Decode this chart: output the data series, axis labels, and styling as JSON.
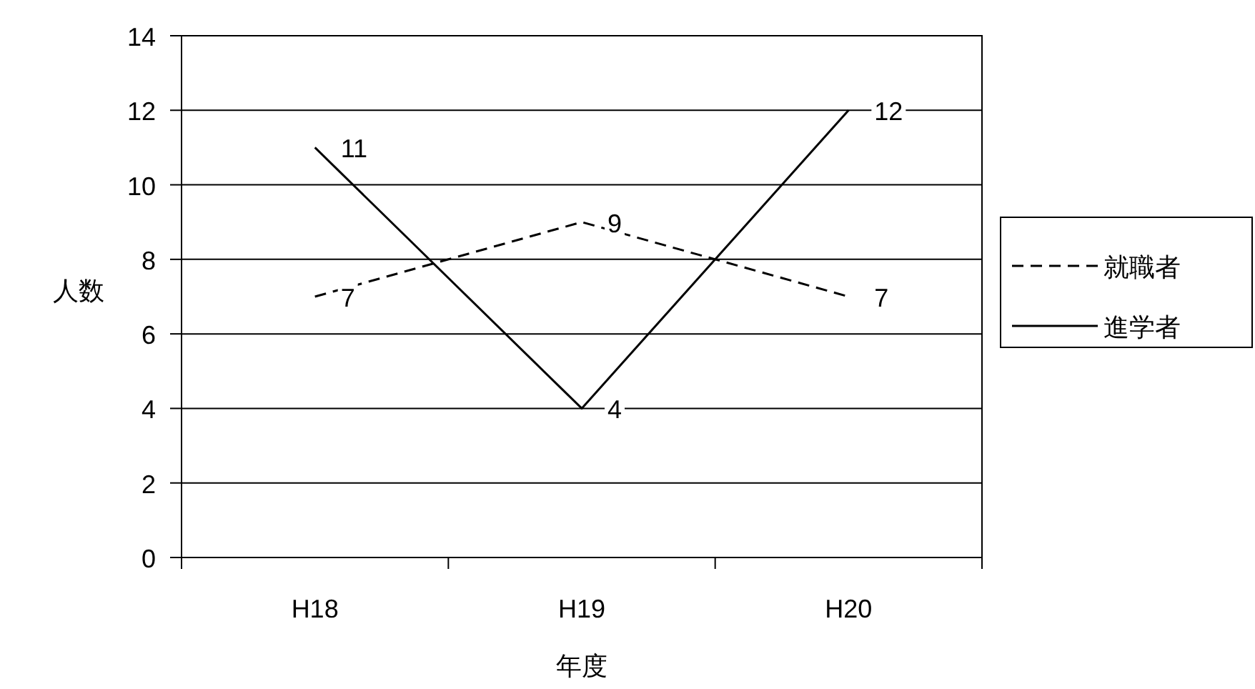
{
  "chart_data": {
    "type": "line",
    "xlabel": "年度",
    "ylabel": "人数",
    "categories": [
      "H18",
      "H19",
      "H20"
    ],
    "series": [
      {
        "name": "就職者",
        "color": "#000000",
        "values": [
          7,
          9,
          7
        ],
        "line_style": "dashed"
      },
      {
        "name": "進学者",
        "color": "#000000",
        "values": [
          11,
          4,
          12
        ],
        "line_style": "solid"
      }
    ],
    "ylim": [
      0,
      14
    ],
    "yticks": [
      0,
      2,
      4,
      6,
      8,
      10,
      12,
      14
    ],
    "grid": "y",
    "legend": "right",
    "data_labels": true,
    "marker": "none"
  }
}
